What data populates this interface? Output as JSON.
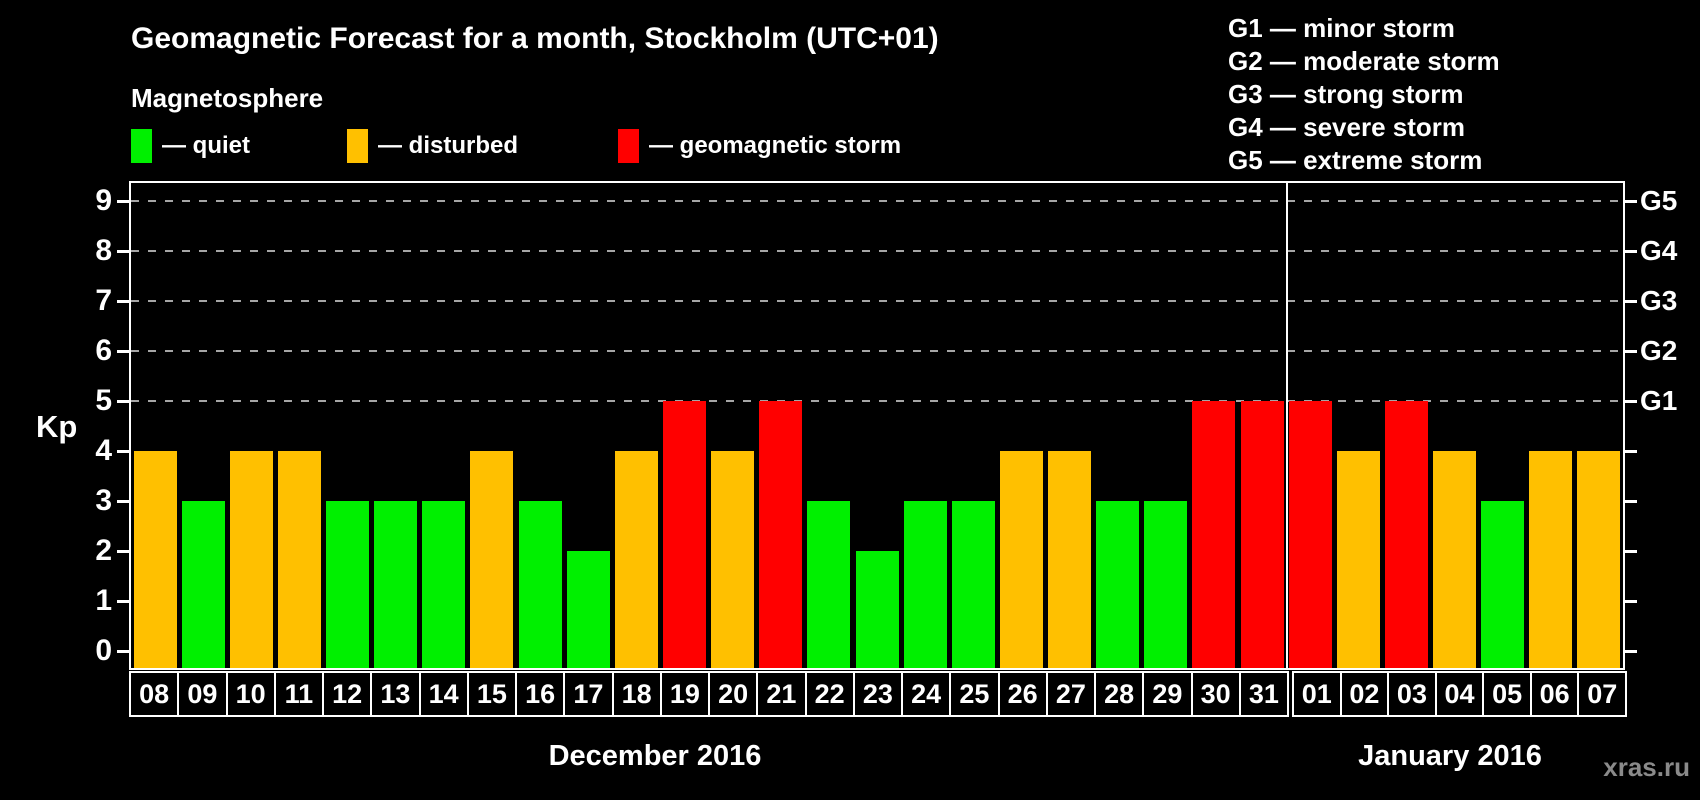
{
  "title": "Geomagnetic Forecast for a month, Stockholm (UTC+01)",
  "subtitle": "Magnetosphere",
  "colors": {
    "quiet": "#00f000",
    "disturbed": "#ffc000",
    "storm": "#ff0000",
    "grid": "#a6a6a6",
    "frame": "#ffffff",
    "background": "#000000",
    "watermark": "#8a8a8a"
  },
  "legend": {
    "items": [
      {
        "label": "— quiet",
        "condition": "quiet",
        "color": "#00f000"
      },
      {
        "label": "— disturbed",
        "condition": "disturbed",
        "color": "#ffc000"
      },
      {
        "label": "— geomagnetic storm",
        "condition": "storm",
        "color": "#ff0000"
      }
    ]
  },
  "g_legend": {
    "lines": [
      {
        "label": "G1 — minor storm"
      },
      {
        "label": "G2 — moderate storm"
      },
      {
        "label": "G3 — strong storm"
      },
      {
        "label": "G4 — severe storm"
      },
      {
        "label": "G5 — extreme storm"
      }
    ]
  },
  "axes": {
    "y_label": "Kp",
    "y_ticks": [
      0,
      1,
      2,
      3,
      4,
      5,
      6,
      7,
      8,
      9
    ],
    "right_scale": [
      {
        "label": "G1",
        "kp": 5
      },
      {
        "label": "G2",
        "kp": 6
      },
      {
        "label": "G3",
        "kp": 7
      },
      {
        "label": "G4",
        "kp": 8
      },
      {
        "label": "G5",
        "kp": 9
      }
    ]
  },
  "chart_data": {
    "type": "bar",
    "title": "Geomagnetic Forecast for a month, Stockholm (UTC+01)",
    "xlabel": "",
    "ylabel": "Kp",
    "ylim": [
      0,
      9
    ],
    "grid": "dashed horizontal at Kp 5-9 only",
    "categories": [
      "08",
      "09",
      "10",
      "11",
      "12",
      "13",
      "14",
      "15",
      "16",
      "17",
      "18",
      "19",
      "20",
      "21",
      "22",
      "23",
      "24",
      "25",
      "26",
      "27",
      "28",
      "29",
      "30",
      "31",
      "01",
      "02",
      "03",
      "04",
      "05",
      "06",
      "07"
    ],
    "values": [
      4,
      3,
      4,
      4,
      3,
      3,
      3,
      4,
      3,
      2,
      4,
      5,
      4,
      5,
      3,
      2,
      3,
      3,
      4,
      4,
      3,
      3,
      5,
      5,
      5,
      4,
      5,
      4,
      3,
      4,
      4
    ],
    "conditions": [
      "disturbed",
      "quiet",
      "disturbed",
      "disturbed",
      "quiet",
      "quiet",
      "quiet",
      "disturbed",
      "quiet",
      "quiet",
      "disturbed",
      "storm",
      "disturbed",
      "storm",
      "quiet",
      "quiet",
      "quiet",
      "quiet",
      "disturbed",
      "disturbed",
      "quiet",
      "quiet",
      "storm",
      "storm",
      "storm",
      "disturbed",
      "storm",
      "disturbed",
      "quiet",
      "disturbed",
      "disturbed"
    ],
    "months": [
      {
        "label": "December 2016",
        "days": 24
      },
      {
        "label": "January 2016",
        "days": 7
      }
    ]
  },
  "watermark": "xras.ru"
}
